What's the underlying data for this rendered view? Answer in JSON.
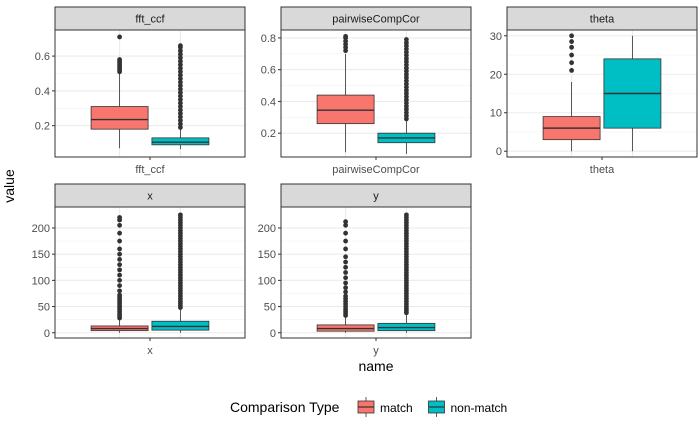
{
  "chart_data": {
    "type": "boxplot",
    "xlabel": "name",
    "ylabel": "value",
    "legend": {
      "title": "Comparison Type",
      "position": "bottom",
      "entries": [
        {
          "label": "match",
          "color": "#F8766D"
        },
        {
          "label": "non-match",
          "color": "#00BFC4"
        }
      ]
    },
    "grid": true,
    "panels": [
      {
        "strip": "fft_ccf",
        "tick_label": "fft_ccf",
        "ylim": [
          0.02,
          0.75
        ],
        "yticks": [
          0.2,
          0.4,
          0.6
        ],
        "ytick_labels": [
          "0.2",
          "0.4",
          "0.6"
        ],
        "boxes": [
          {
            "series": "match",
            "q1": 0.18,
            "median": 0.235,
            "q3": 0.31,
            "whisker_low": 0.07,
            "whisker_high": 0.5,
            "outliers": [
              0.51,
              0.52,
              0.53,
              0.54,
              0.55,
              0.56,
              0.57,
              0.58,
              0.71
            ]
          },
          {
            "series": "non-match",
            "q1": 0.09,
            "median": 0.105,
            "q3": 0.13,
            "whisker_low": 0.065,
            "whisker_high": 0.18,
            "outliers": [
              0.19,
              0.21,
              0.23,
              0.25,
              0.27,
              0.29,
              0.31,
              0.33,
              0.35,
              0.37,
              0.39,
              0.41,
              0.43,
              0.45,
              0.47,
              0.49,
              0.51,
              0.53,
              0.55,
              0.57,
              0.59,
              0.61,
              0.63,
              0.65,
              0.66
            ]
          }
        ]
      },
      {
        "strip": "pairwiseCompCor",
        "tick_label": "pairwiseCompCor",
        "ylim": [
          0.05,
          0.85
        ],
        "yticks": [
          0.2,
          0.4,
          0.6,
          0.8
        ],
        "ytick_labels": [
          "0.2",
          "0.4",
          "0.6",
          "0.8"
        ],
        "boxes": [
          {
            "series": "match",
            "q1": 0.26,
            "median": 0.345,
            "q3": 0.44,
            "whisker_low": 0.08,
            "whisker_high": 0.7,
            "outliers": [
              0.72,
              0.74,
              0.76,
              0.78,
              0.8,
              0.81
            ]
          },
          {
            "series": "non-match",
            "q1": 0.14,
            "median": 0.17,
            "q3": 0.2,
            "whisker_low": 0.07,
            "whisker_high": 0.28,
            "outliers": [
              0.29,
              0.31,
              0.33,
              0.35,
              0.37,
              0.39,
              0.41,
              0.43,
              0.45,
              0.47,
              0.49,
              0.51,
              0.53,
              0.55,
              0.57,
              0.59,
              0.61,
              0.63,
              0.65,
              0.67,
              0.69,
              0.71,
              0.73,
              0.75,
              0.77,
              0.79
            ]
          }
        ]
      },
      {
        "strip": "theta",
        "tick_label": "theta",
        "ylim": [
          -1.5,
          31.5
        ],
        "yticks": [
          0,
          10,
          20,
          30
        ],
        "ytick_labels": [
          "0",
          "10",
          "20",
          "30"
        ],
        "boxes": [
          {
            "series": "match",
            "q1": 3,
            "median": 6,
            "q3": 9,
            "whisker_low": 0,
            "whisker_high": 18,
            "outliers": [
              21,
              23,
              25,
              27,
              28.5,
              30
            ]
          },
          {
            "series": "non-match",
            "q1": 6,
            "median": 15,
            "q3": 24,
            "whisker_low": 0,
            "whisker_high": 30,
            "outliers": []
          }
        ]
      },
      {
        "strip": "x",
        "tick_label": "x",
        "ylim": [
          -10,
          240
        ],
        "yticks": [
          0,
          50,
          100,
          150,
          200
        ],
        "ytick_labels": [
          "0",
          "50",
          "100",
          "150",
          "200"
        ],
        "boxes": [
          {
            "series": "match",
            "q1": 4,
            "median": 8,
            "q3": 13,
            "whisker_low": 0,
            "whisker_high": 25,
            "outliers": [
              28,
              32,
              36,
              40,
              44,
              48,
              52,
              56,
              60,
              64,
              68,
              72,
              80,
              90,
              100,
              110,
              120,
              130,
              140,
              150,
              160,
              175,
              190,
              205,
              215,
              220
            ]
          },
          {
            "series": "non-match",
            "q1": 5,
            "median": 12,
            "q3": 22,
            "whisker_low": 0,
            "whisker_high": 45,
            "outliers": [
              48,
              52,
              56,
              60,
              65,
              70,
              75,
              80,
              85,
              90,
              95,
              100,
              105,
              110,
              115,
              120,
              125,
              130,
              135,
              140,
              145,
              150,
              155,
              160,
              165,
              170,
              175,
              180,
              185,
              190,
              195,
              200,
              205,
              210,
              215,
              220,
              225
            ]
          }
        ]
      },
      {
        "strip": "y",
        "tick_label": "y",
        "ylim": [
          -10,
          240
        ],
        "yticks": [
          0,
          50,
          100,
          150,
          200
        ],
        "ytick_labels": [
          "0",
          "50",
          "100",
          "150",
          "200"
        ],
        "boxes": [
          {
            "series": "match",
            "q1": 3,
            "median": 8,
            "q3": 15,
            "whisker_low": 0,
            "whisker_high": 30,
            "outliers": [
              33,
              37,
              41,
              45,
              50,
              55,
              60,
              65,
              70,
              78,
              86,
              95,
              105,
              115,
              125,
              135,
              145,
              160,
              175,
              190,
              205,
              212
            ]
          },
          {
            "series": "non-match",
            "q1": 4,
            "median": 10,
            "q3": 18,
            "whisker_low": 0,
            "whisker_high": 35,
            "outliers": [
              38,
              42,
              46,
              50,
              55,
              60,
              65,
              70,
              75,
              80,
              85,
              90,
              95,
              100,
              105,
              110,
              115,
              120,
              125,
              130,
              135,
              140,
              145,
              150,
              155,
              160,
              165,
              170,
              175,
              180,
              185,
              190,
              195,
              200,
              205,
              210,
              215,
              220,
              225
            ]
          }
        ]
      }
    ]
  }
}
